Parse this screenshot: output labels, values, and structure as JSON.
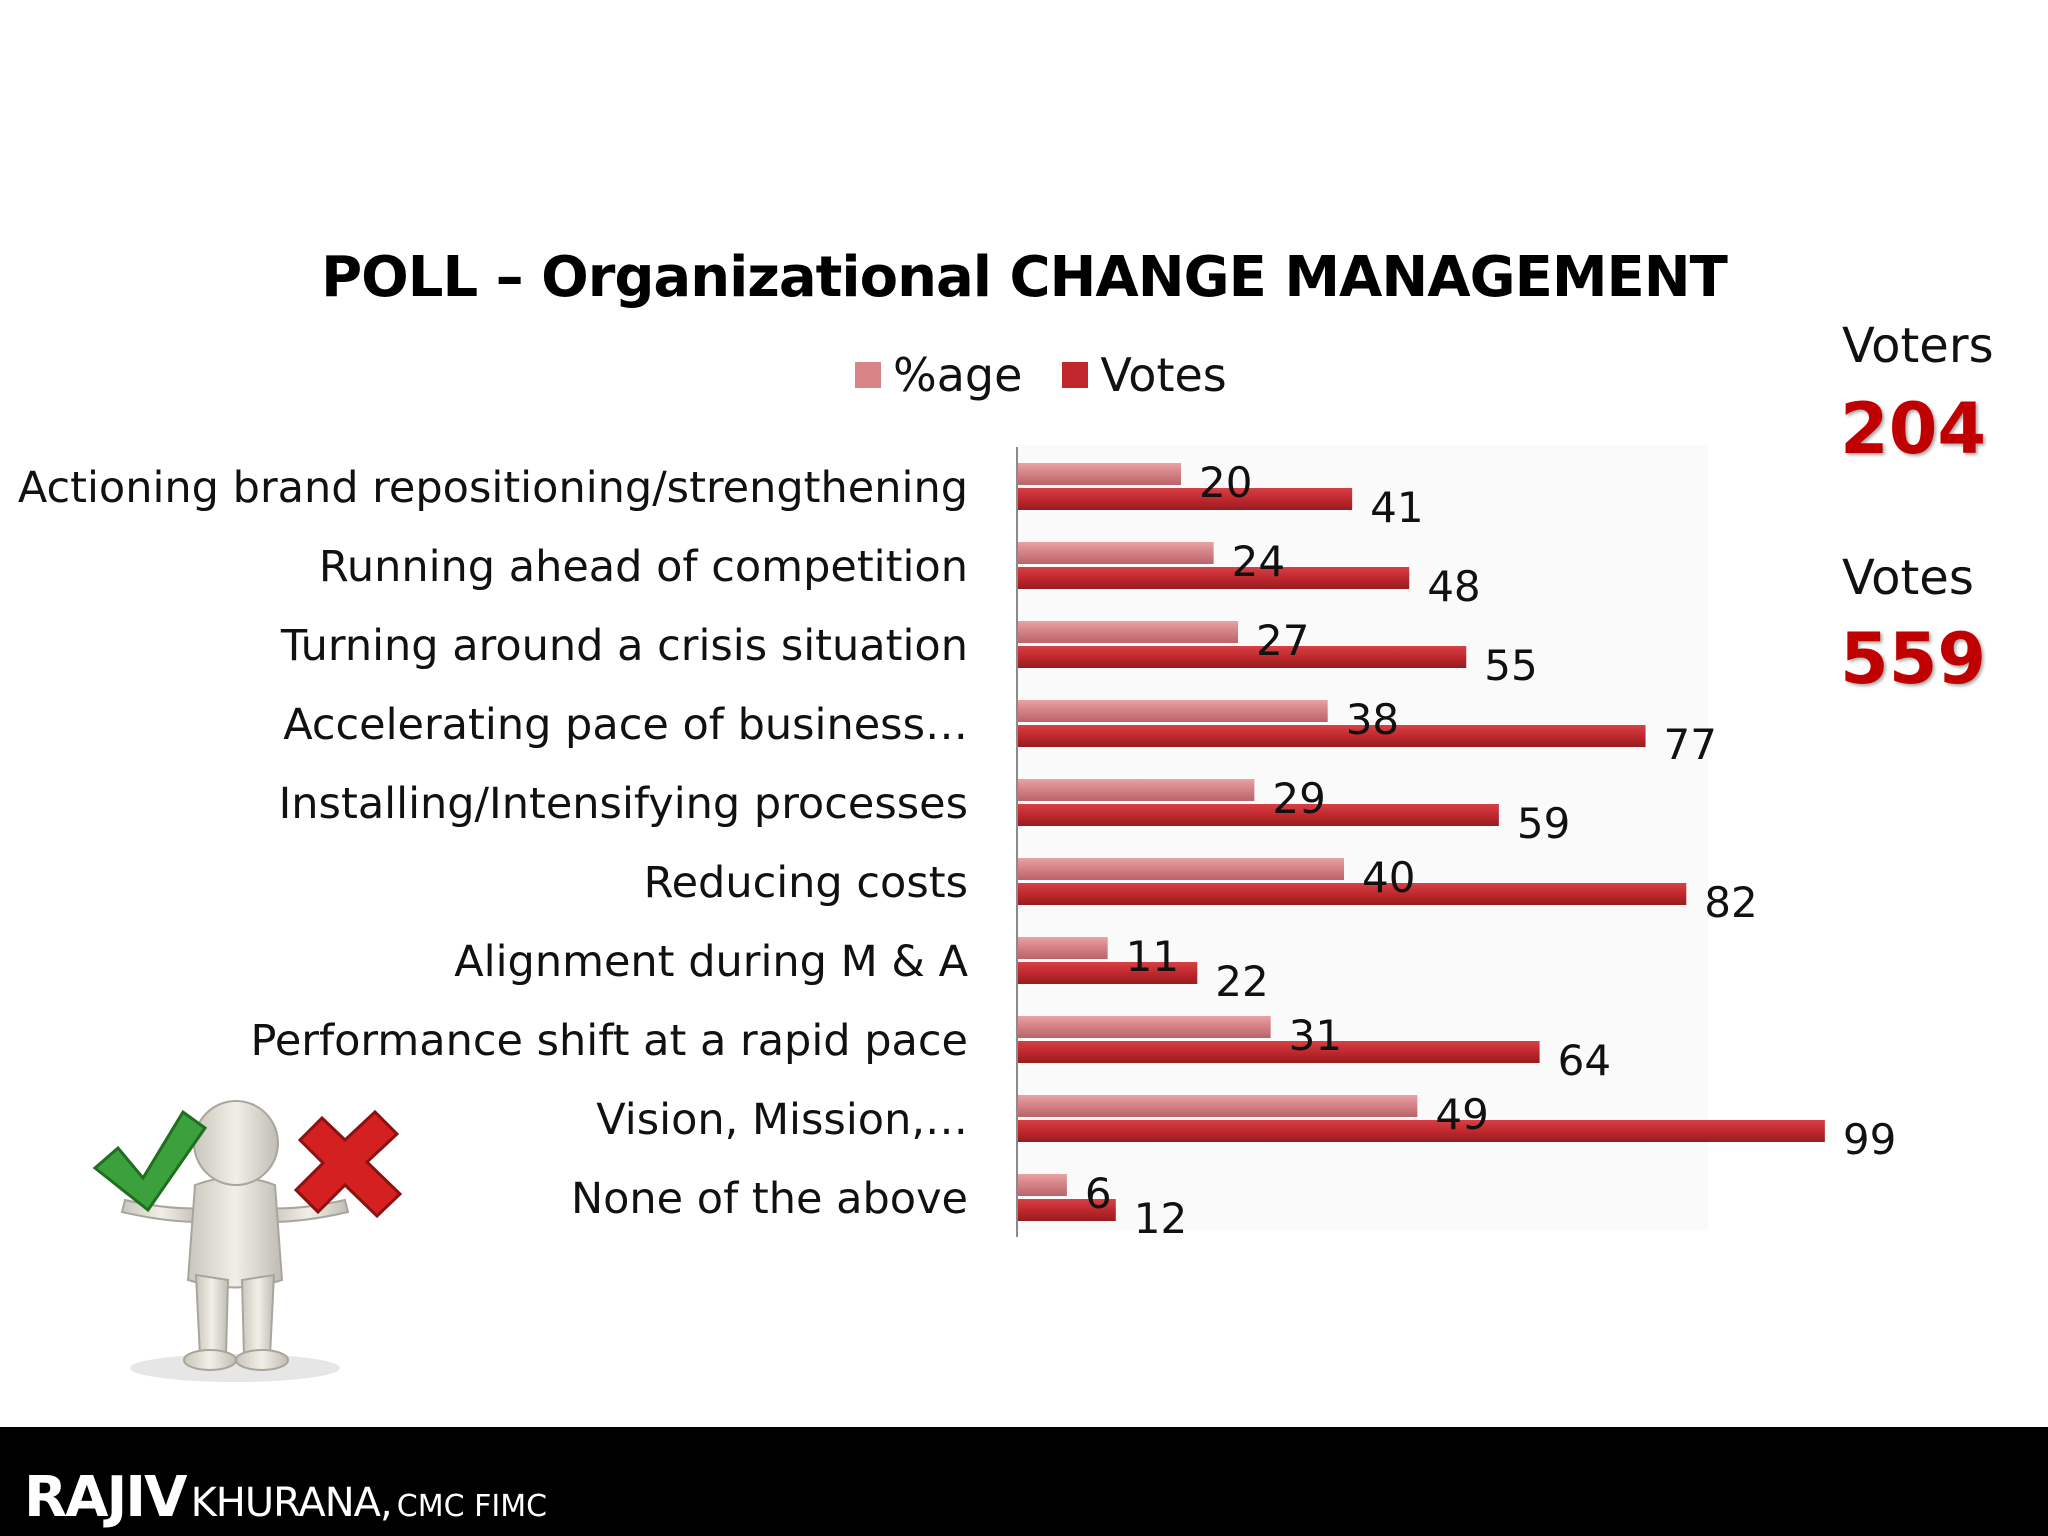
{
  "title": "POLL – Organizational CHANGE MANAGEMENT",
  "legend": [
    {
      "label": "%age",
      "color": "#d98588"
    },
    {
      "label": "Votes",
      "color": "#c0282d"
    }
  ],
  "stats": {
    "voters_label": "Voters",
    "voters_value": "204",
    "votes_label": "Votes",
    "votes_value": "559"
  },
  "chart_data": {
    "type": "bar",
    "orientation": "horizontal",
    "title": "POLL – Organizational CHANGE MANAGEMENT",
    "categories": [
      "Actioning brand repositioning/strengthening",
      "Running ahead of competition",
      "Turning around a crisis situation",
      "Accelerating pace of business…",
      "Installing/Intensifying processes",
      "Reducing costs",
      "Alignment during M & A",
      "Performance shift at a rapid pace",
      "Vision, Mission,…",
      "None of the above"
    ],
    "series": [
      {
        "name": "%age",
        "color": "#d98588",
        "values": [
          20,
          24,
          27,
          38,
          29,
          40,
          11,
          31,
          49,
          6
        ]
      },
      {
        "name": "Votes",
        "color": "#c0282d",
        "values": [
          41,
          48,
          55,
          77,
          59,
          82,
          22,
          64,
          99,
          12
        ]
      }
    ],
    "xlim": [
      0,
      100
    ],
    "grid": false,
    "legend_position": "top"
  },
  "footer": {
    "first_name": "RAJIV",
    "last_name": "KHURANA,",
    "credentials": "CMC FIMC"
  }
}
